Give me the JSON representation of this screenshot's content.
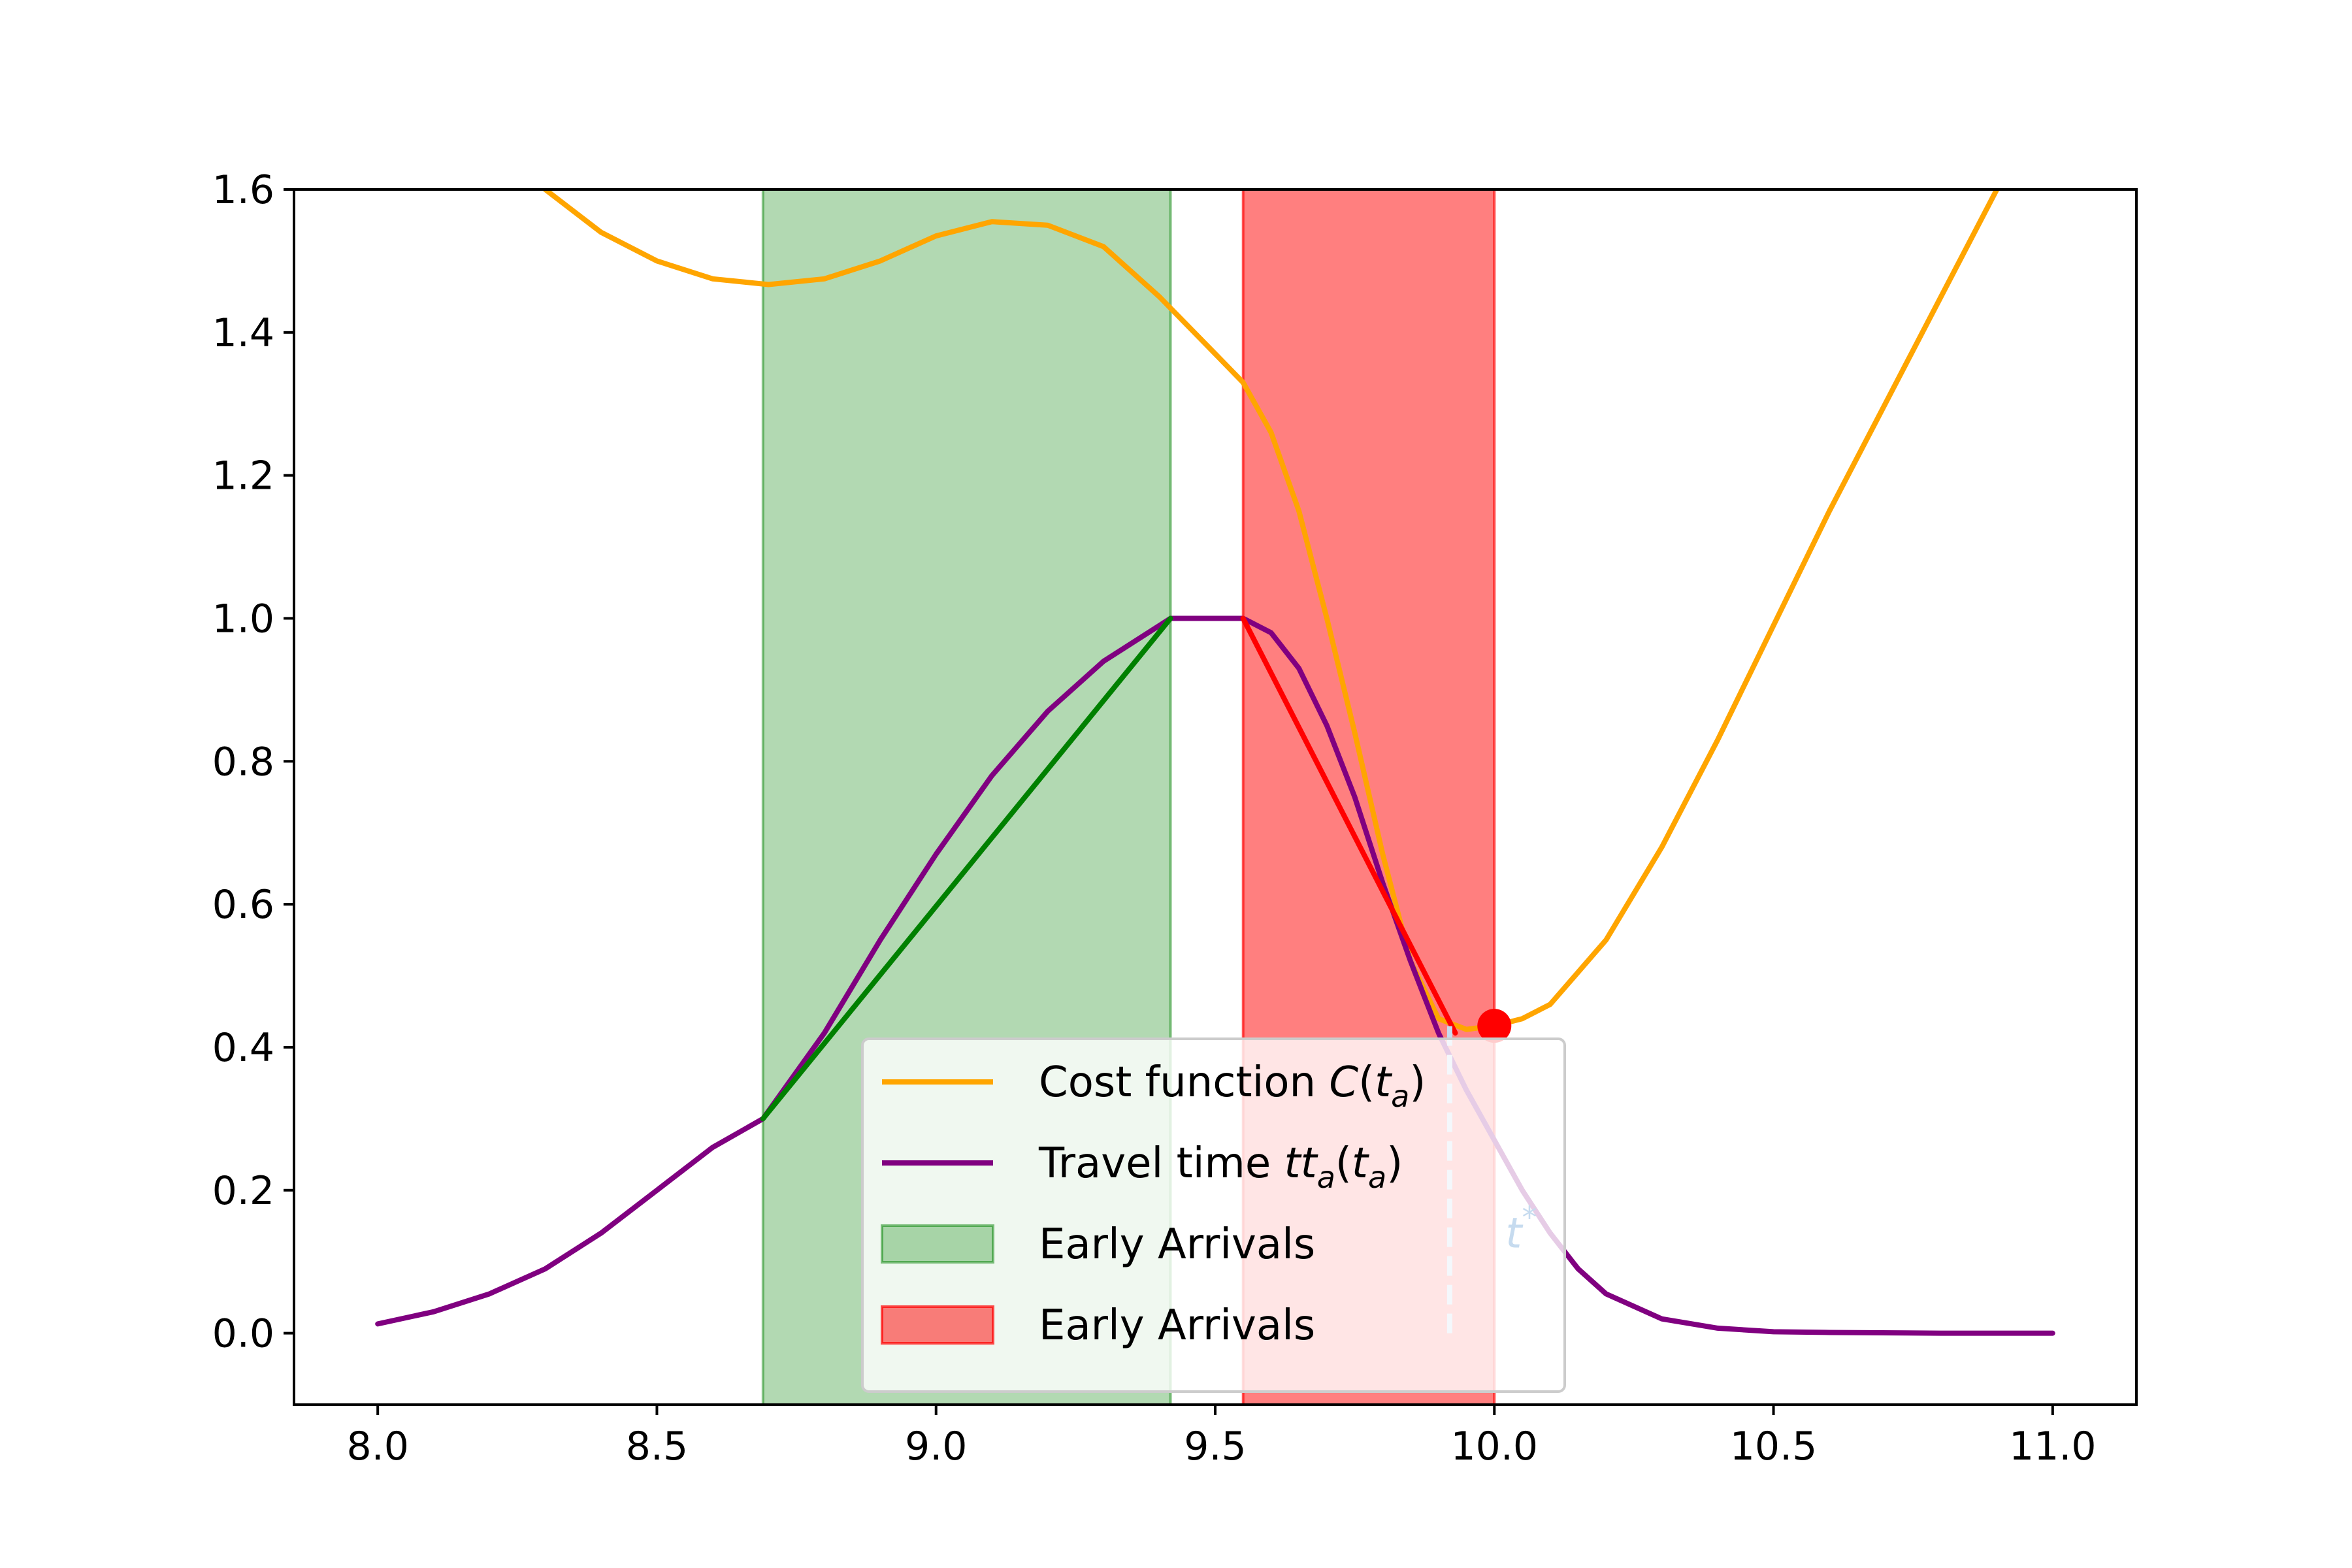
{
  "chart_data": {
    "type": "line",
    "title": "",
    "xlabel": "",
    "ylabel": "",
    "xlim": [
      7.85,
      11.15
    ],
    "ylim": [
      -0.1,
      1.6
    ],
    "x_ticks": [
      "8.0",
      "8.5",
      "9.0",
      "9.5",
      "10.0",
      "10.5",
      "11.0"
    ],
    "y_ticks": [
      "0.0",
      "0.2",
      "0.4",
      "0.6",
      "0.8",
      "1.0",
      "1.2",
      "1.4",
      "1.6"
    ],
    "grid": false,
    "legend_position": "lower center",
    "spans": [
      {
        "name": "Early Arrivals",
        "x_start": 8.69,
        "x_end": 9.42,
        "color": "#008000",
        "alpha": 0.3
      },
      {
        "name": "Early Arrivals",
        "x_start": 9.55,
        "x_end": 10.0,
        "color": "#ff0000",
        "alpha": 0.5
      }
    ],
    "series": [
      {
        "name_prefix": "Cost function ",
        "name_func": "C",
        "name_var": "t",
        "name_sub": "a",
        "color": "#ffa500",
        "x": [
          8.3,
          8.4,
          8.5,
          8.6,
          8.7,
          8.8,
          8.9,
          9.0,
          9.1,
          9.2,
          9.3,
          9.4,
          9.5,
          9.55,
          9.6,
          9.65,
          9.7,
          9.75,
          9.8,
          9.85,
          9.9,
          9.95,
          10.0,
          10.05,
          10.1,
          10.2,
          10.3,
          10.4,
          10.5,
          10.6,
          10.7,
          10.8,
          10.9
        ],
        "y": [
          1.6,
          1.54,
          1.5,
          1.475,
          1.467,
          1.475,
          1.5,
          1.535,
          1.555,
          1.55,
          1.52,
          1.45,
          1.37,
          1.33,
          1.26,
          1.15,
          1.0,
          0.84,
          0.67,
          0.52,
          0.44,
          0.425,
          0.43,
          0.44,
          0.46,
          0.55,
          0.68,
          0.83,
          0.99,
          1.15,
          1.3,
          1.45,
          1.6
        ]
      },
      {
        "name_prefix": "Travel time ",
        "name_func": "tt",
        "name_func_sub": "a",
        "name_var": "t",
        "name_sub": "a",
        "color": "#800080",
        "x": [
          8.0,
          8.1,
          8.2,
          8.3,
          8.4,
          8.5,
          8.6,
          8.69,
          8.8,
          8.9,
          9.0,
          9.1,
          9.2,
          9.3,
          9.42,
          9.55,
          9.6,
          9.65,
          9.7,
          9.75,
          9.8,
          9.85,
          9.9,
          9.95,
          10.0,
          10.05,
          10.1,
          10.15,
          10.2,
          10.3,
          10.4,
          10.5,
          10.6,
          10.8,
          11.0
        ],
        "y": [
          0.013,
          0.03,
          0.055,
          0.09,
          0.14,
          0.2,
          0.26,
          0.3,
          0.42,
          0.55,
          0.67,
          0.78,
          0.87,
          0.94,
          1.0,
          1.0,
          0.98,
          0.93,
          0.85,
          0.75,
          0.63,
          0.52,
          0.42,
          0.34,
          0.27,
          0.2,
          0.14,
          0.09,
          0.055,
          0.02,
          0.007,
          0.002,
          0.001,
          0.0,
          0.0
        ]
      },
      {
        "color": "#008000",
        "x": [
          8.69,
          9.42
        ],
        "y": [
          0.3,
          1.0
        ]
      },
      {
        "color": "#ff0000",
        "x": [
          9.55,
          9.93
        ],
        "y": [
          1.0,
          0.42
        ]
      }
    ],
    "marker": {
      "x": 10.0,
      "y": 0.43,
      "color": "#ff0000"
    },
    "vline": {
      "x": 9.92,
      "y_from": 0.0,
      "y_to": 0.43,
      "color": "#c6dbef",
      "style": "dashed"
    },
    "annotation": {
      "text": "t",
      "superscript": "*",
      "x": 10.02,
      "y": 0.12,
      "color": "#c6dbef"
    },
    "legend": [
      {
        "kind": "line",
        "color": "#ffa500",
        "prefix": "Cost function ",
        "func": "C",
        "var": "t",
        "sub": "a"
      },
      {
        "kind": "line",
        "color": "#800080",
        "prefix": "Travel time ",
        "func": "tt",
        "func_sub": "a",
        "var": "t",
        "sub": "a"
      },
      {
        "kind": "patch",
        "color": "#008000",
        "alpha": 0.3,
        "label": "Early Arrivals"
      },
      {
        "kind": "patch",
        "color": "#ff0000",
        "alpha": 0.5,
        "label": "Early Arrivals"
      }
    ]
  }
}
